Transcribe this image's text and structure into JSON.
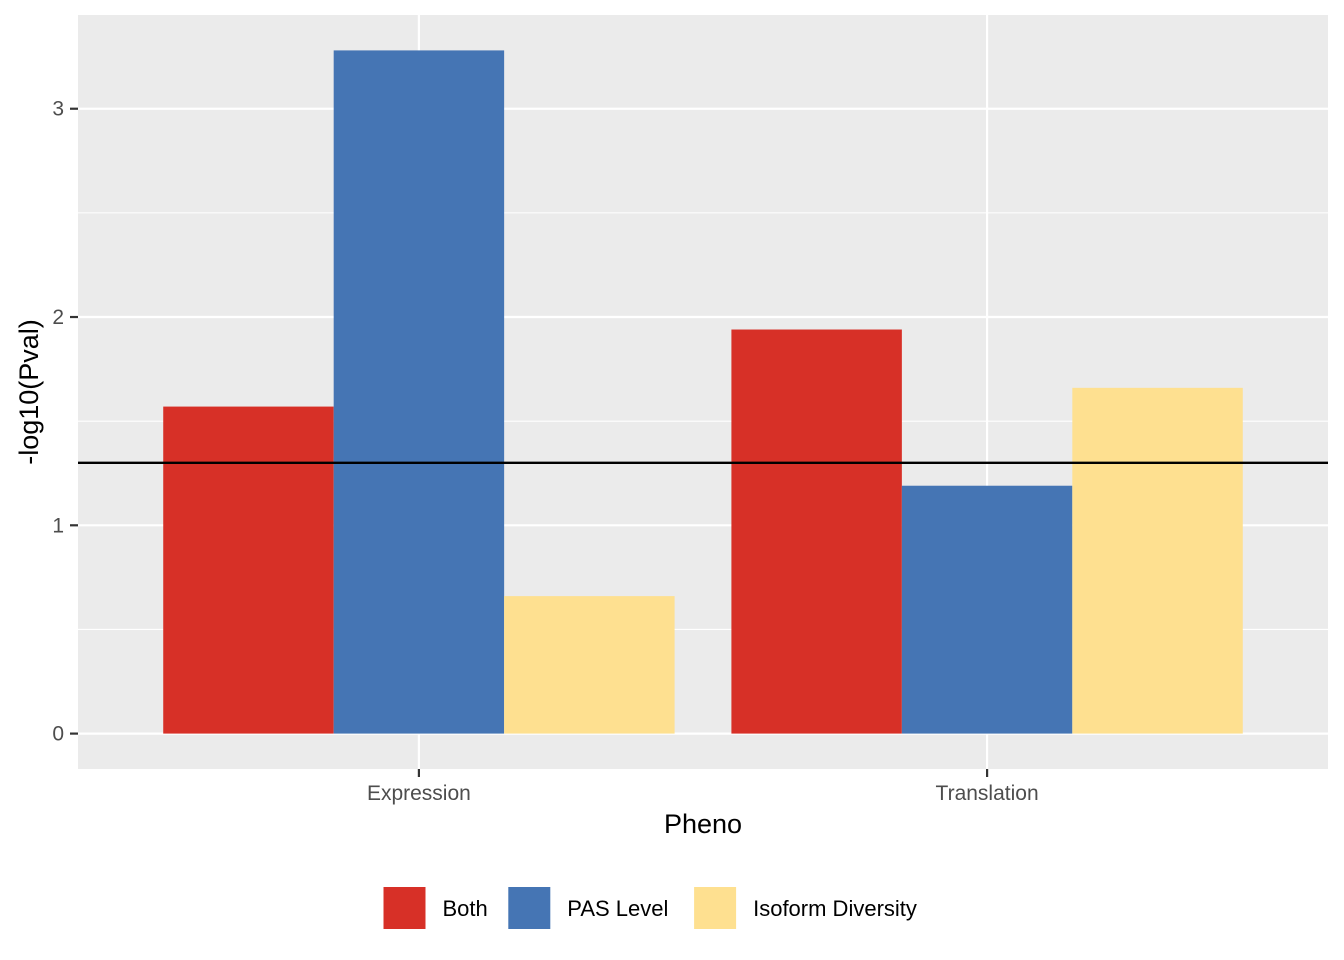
{
  "chart_data": {
    "type": "bar",
    "categories": [
      "Expression",
      "Translation"
    ],
    "series": [
      {
        "name": "Both",
        "color": "#d73027",
        "values": [
          1.57,
          1.94
        ]
      },
      {
        "name": "PAS Level",
        "color": "#4575b4",
        "values": [
          3.28,
          1.19
        ]
      },
      {
        "name": "Isoform Diversity",
        "color": "#fee090",
        "values": [
          0.66,
          1.66
        ]
      }
    ],
    "xlabel": "Pheno",
    "ylabel": "-log10(Pval)",
    "ylim": [
      -0.17,
      3.45
    ],
    "yticks": [
      "0",
      "1",
      "2",
      "3"
    ],
    "reference_line": {
      "y": 1.3,
      "color": "#000000"
    },
    "grid": true,
    "panel_background": "#ebebeb",
    "legend_position": "bottom"
  }
}
